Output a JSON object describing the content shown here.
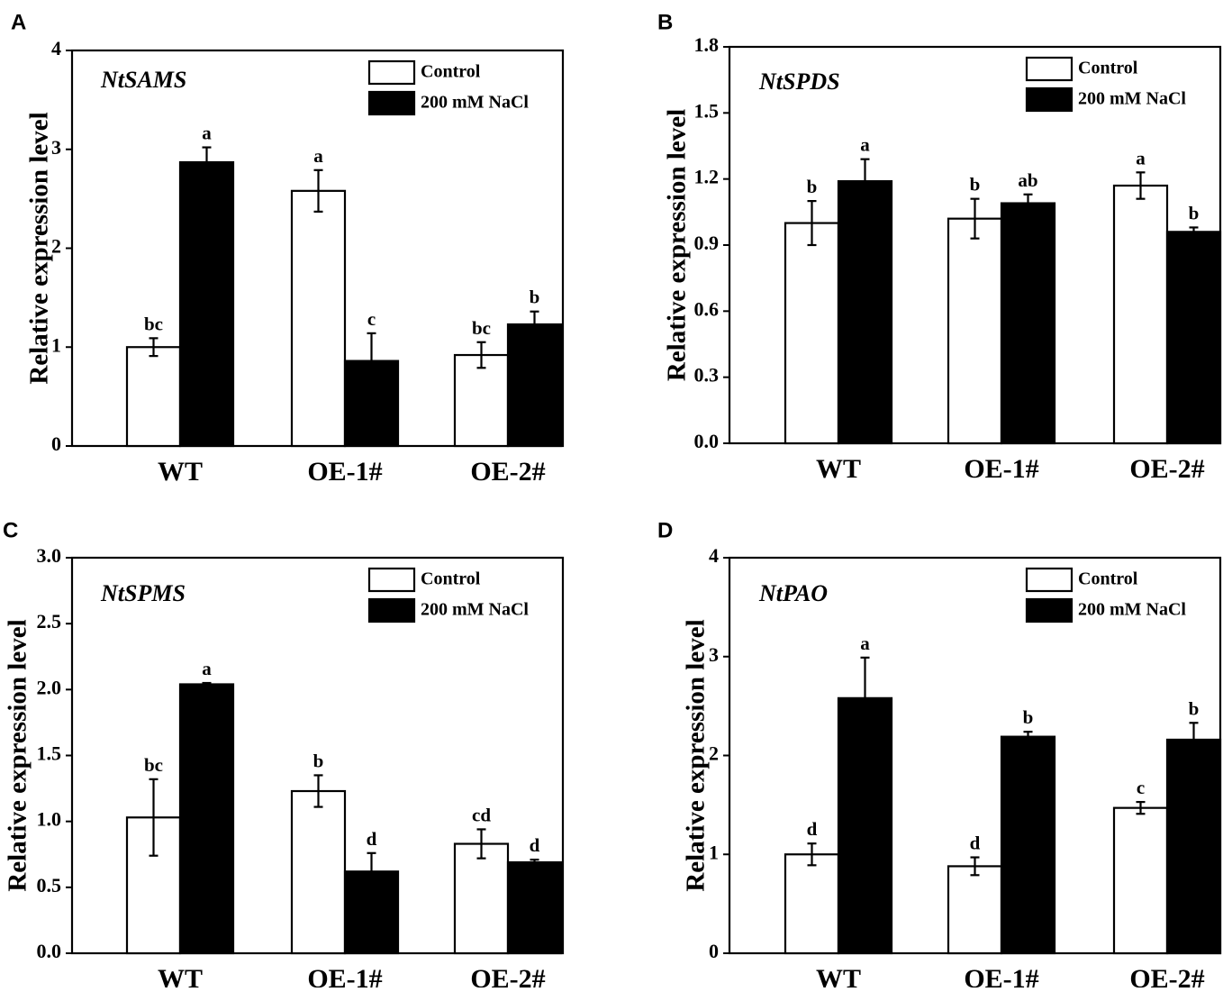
{
  "figure": {
    "legend": {
      "control": "Control",
      "treatment": "200 mM NaCl"
    },
    "y_axis_label": "Relative expression level",
    "colors": {
      "control_fill": "#ffffff",
      "treatment_fill": "#000000",
      "stroke": "#000000"
    }
  },
  "chart_data": [
    {
      "type": "bar",
      "panel": "A",
      "title": "NtSAMS",
      "categories": [
        "WT",
        "OE-1#",
        "OE-2#"
      ],
      "ylabel": "Relative expression level",
      "ylim": [
        0,
        4
      ],
      "yticks": [
        0,
        1,
        2,
        3,
        4
      ],
      "ytick_labels": [
        "0",
        "1",
        "2",
        "3",
        "4"
      ],
      "series": [
        {
          "name": "Control",
          "values": [
            1.0,
            2.58,
            0.92
          ],
          "errors": [
            0.09,
            0.21,
            0.13
          ],
          "letters": [
            "bc",
            "a",
            "bc"
          ]
        },
        {
          "name": "200 mM NaCl",
          "values": [
            2.87,
            0.86,
            1.23
          ],
          "errors": [
            0.15,
            0.28,
            0.13
          ],
          "letters": [
            "a",
            "c",
            "b"
          ]
        }
      ]
    },
    {
      "type": "bar",
      "panel": "B",
      "title": "NtSPDS",
      "categories": [
        "WT",
        "OE-1#",
        "OE-2#"
      ],
      "ylabel": "Relative expression level",
      "ylim": [
        0,
        1.8
      ],
      "yticks": [
        0,
        0.3,
        0.6,
        0.9,
        1.2,
        1.5,
        1.8
      ],
      "ytick_labels": [
        "0.0",
        "0.3",
        "0.6",
        "0.9",
        "1.2",
        "1.5",
        "1.8"
      ],
      "series": [
        {
          "name": "Control",
          "values": [
            1.0,
            1.02,
            1.17
          ],
          "errors": [
            0.1,
            0.09,
            0.06
          ],
          "letters": [
            "b",
            "b",
            "a"
          ]
        },
        {
          "name": "200 mM NaCl",
          "values": [
            1.19,
            1.09,
            0.96
          ],
          "errors": [
            0.1,
            0.04,
            0.02
          ],
          "letters": [
            "a",
            "ab",
            "b"
          ]
        }
      ]
    },
    {
      "type": "bar",
      "panel": "C",
      "title": "NtSPMS",
      "categories": [
        "WT",
        "OE-1#",
        "OE-2#"
      ],
      "ylabel": "Relative expression level",
      "ylim": [
        0,
        3.0
      ],
      "yticks": [
        0,
        0.5,
        1.0,
        1.5,
        2.0,
        2.5,
        3.0
      ],
      "ytick_labels": [
        "0.0",
        "0.5",
        "1.0",
        "1.5",
        "2.0",
        "2.5",
        "3.0"
      ],
      "series": [
        {
          "name": "Control",
          "values": [
            1.03,
            1.23,
            0.83
          ],
          "errors": [
            0.29,
            0.12,
            0.11
          ],
          "letters": [
            "bc",
            "b",
            "cd"
          ]
        },
        {
          "name": "200 mM NaCl",
          "values": [
            2.04,
            0.62,
            0.69
          ],
          "errors": [
            0.01,
            0.14,
            0.02
          ],
          "letters": [
            "a",
            "d",
            "d"
          ]
        }
      ]
    },
    {
      "type": "bar",
      "panel": "D",
      "title": "NtPAO",
      "categories": [
        "WT",
        "OE-1#",
        "OE-2#"
      ],
      "ylabel": "Relative expression level",
      "ylim": [
        0,
        4
      ],
      "yticks": [
        0,
        1,
        2,
        3,
        4
      ],
      "ytick_labels": [
        "0",
        "1",
        "2",
        "3",
        "4"
      ],
      "series": [
        {
          "name": "Control",
          "values": [
            1.0,
            0.88,
            1.47
          ],
          "errors": [
            0.11,
            0.09,
            0.06
          ],
          "letters": [
            "d",
            "d",
            "c"
          ]
        },
        {
          "name": "200 mM NaCl",
          "values": [
            2.58,
            2.19,
            2.16
          ],
          "errors": [
            0.41,
            0.05,
            0.17
          ],
          "letters": [
            "a",
            "b",
            "b"
          ]
        }
      ]
    }
  ]
}
